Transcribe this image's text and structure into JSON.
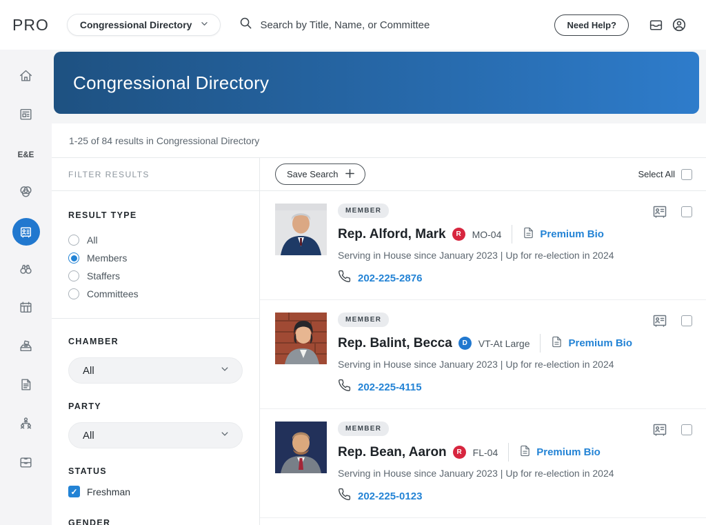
{
  "topbar": {
    "logo": "PRO",
    "directory_dropdown": "Congressional Directory",
    "search_placeholder": "Search by Title, Name, or Committee",
    "need_help_label": "Need Help?"
  },
  "sidebar": {
    "items": [
      {
        "name": "home",
        "active": false
      },
      {
        "name": "news",
        "active": false
      },
      {
        "name": "ee-news",
        "label": "E&E",
        "active": false
      },
      {
        "name": "topics",
        "active": false
      },
      {
        "name": "directory",
        "active": true
      },
      {
        "name": "lookup",
        "active": false
      },
      {
        "name": "schedule",
        "active": false
      },
      {
        "name": "elections",
        "active": false
      },
      {
        "name": "documents",
        "active": false
      },
      {
        "name": "org-chart",
        "active": false
      },
      {
        "name": "inbox",
        "active": false
      }
    ]
  },
  "banner": {
    "title": "Congressional Directory"
  },
  "results_bar": {
    "text": "1-25 of 84 results in Congressional Directory"
  },
  "filters": {
    "title": "FILTER RESULTS",
    "result_type": {
      "label": "RESULT TYPE",
      "options": [
        {
          "label": "All",
          "selected": false
        },
        {
          "label": "Members",
          "selected": true
        },
        {
          "label": "Staffers",
          "selected": false
        },
        {
          "label": "Committees",
          "selected": false
        }
      ]
    },
    "chamber": {
      "label": "CHAMBER",
      "value": "All"
    },
    "party": {
      "label": "PARTY",
      "value": "All"
    },
    "status": {
      "label": "STATUS",
      "options": [
        {
          "label": "Freshman",
          "checked": true
        }
      ]
    },
    "gender": {
      "label": "GENDER"
    }
  },
  "results_header": {
    "save_search_label": "Save Search",
    "select_all_label": "Select All"
  },
  "members": [
    {
      "badge": "MEMBER",
      "name": "Rep. Alford, Mark",
      "party": "R",
      "district": "MO-04",
      "premium_bio_label": "Premium Bio",
      "serving": "Serving in House since January 2023 | Up for re-election in 2024",
      "phone": "202-225-2876"
    },
    {
      "badge": "MEMBER",
      "name": "Rep. Balint, Becca",
      "party": "D",
      "district": "VT-At Large",
      "premium_bio_label": "Premium Bio",
      "serving": "Serving in House since January 2023 | Up for re-election in 2024",
      "phone": "202-225-4115"
    },
    {
      "badge": "MEMBER",
      "name": "Rep. Bean, Aaron",
      "party": "R",
      "district": "FL-04",
      "premium_bio_label": "Premium Bio",
      "serving": "Serving in House since January 2023 | Up for re-election in 2024",
      "phone": "202-225-0123"
    }
  ],
  "colors": {
    "accent": "#2383d5",
    "banner_gradient_start": "#1e5181",
    "banner_gradient_end": "#2e7ccb",
    "republican_red": "#d7263f",
    "democrat_blue": "#2178cf"
  }
}
